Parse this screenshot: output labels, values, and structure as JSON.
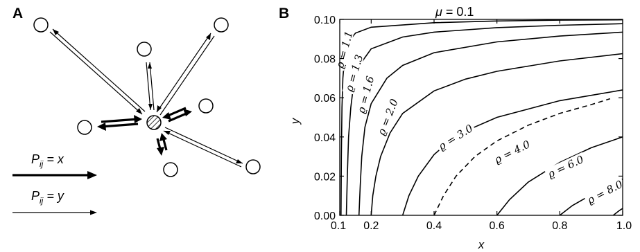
{
  "panel_a": {
    "letter": "A",
    "legend": [
      {
        "label": "P_ij = x",
        "base": "P",
        "sub": "ij",
        "rest": " = x",
        "weight": "thick"
      },
      {
        "label": "P_ij = y",
        "base": "P",
        "sub": "ij",
        "rest": " = y",
        "weight": "thin"
      }
    ],
    "nodes": [
      {
        "id": "node-1"
      },
      {
        "id": "node-2"
      },
      {
        "id": "node-3"
      },
      {
        "id": "node-4"
      },
      {
        "id": "node-5"
      },
      {
        "id": "node-6"
      },
      {
        "id": "node-7"
      },
      {
        "id": "node-8"
      }
    ],
    "center_node": "central-node (hatched)"
  },
  "panel_b": {
    "letter": "B",
    "title_symbol": "μ",
    "title_rest": " = 0.1"
  },
  "chart_data": {
    "type": "line",
    "subtype": "contour",
    "title": "μ = 0.1",
    "xlabel": "x",
    "ylabel": "y",
    "xlim": [
      0.1,
      1.0
    ],
    "ylim": [
      0.0,
      0.1
    ],
    "xticks": [
      "0.1",
      "0.2",
      "0.4",
      "0.6",
      "0.8",
      "1.0"
    ],
    "yticks": [
      "0.00",
      "0.02",
      "0.04",
      "0.06",
      "0.08",
      "0.10"
    ],
    "grid": false,
    "series": [
      {
        "name": "ϱ = 1.1",
        "label_text": "ϱ = 1.1",
        "style": "solid",
        "points": [
          [
            0.104,
            0.0
          ],
          [
            0.105,
            0.03
          ],
          [
            0.107,
            0.055
          ],
          [
            0.11,
            0.07
          ],
          [
            0.115,
            0.08
          ],
          [
            0.125,
            0.088
          ],
          [
            0.15,
            0.093
          ],
          [
            0.2,
            0.096
          ],
          [
            0.4,
            0.0983
          ],
          [
            0.6,
            0.0992
          ],
          [
            0.8,
            0.0996
          ],
          [
            1.0,
            0.0998
          ]
        ]
      },
      {
        "name": "ϱ = 1.3",
        "label_text": "ϱ = 1.3",
        "style": "solid",
        "points": [
          [
            0.121,
            0.0
          ],
          [
            0.124,
            0.02
          ],
          [
            0.128,
            0.04
          ],
          [
            0.135,
            0.055
          ],
          [
            0.145,
            0.068
          ],
          [
            0.16,
            0.076
          ],
          [
            0.2,
            0.085
          ],
          [
            0.3,
            0.091
          ],
          [
            0.4,
            0.0935
          ],
          [
            0.6,
            0.0958
          ],
          [
            0.8,
            0.097
          ],
          [
            1.0,
            0.0978
          ]
        ]
      },
      {
        "name": "ϱ = 1.6",
        "label_text": "ϱ = 1.6",
        "style": "solid",
        "points": [
          [
            0.161,
            0.0
          ],
          [
            0.165,
            0.015
          ],
          [
            0.17,
            0.03
          ],
          [
            0.18,
            0.045
          ],
          [
            0.2,
            0.057
          ],
          [
            0.25,
            0.07
          ],
          [
            0.3,
            0.0765
          ],
          [
            0.4,
            0.083
          ],
          [
            0.6,
            0.0885
          ],
          [
            0.8,
            0.0915
          ],
          [
            1.0,
            0.0935
          ]
        ]
      },
      {
        "name": "ϱ = 2.0",
        "label_text": "ϱ = 2.0",
        "style": "solid",
        "points": [
          [
            0.2,
            0.0
          ],
          [
            0.205,
            0.01
          ],
          [
            0.215,
            0.02
          ],
          [
            0.23,
            0.03
          ],
          [
            0.26,
            0.042
          ],
          [
            0.3,
            0.052
          ],
          [
            0.4,
            0.0635
          ],
          [
            0.5,
            0.0695
          ],
          [
            0.6,
            0.0735
          ],
          [
            0.8,
            0.0788
          ],
          [
            1.0,
            0.0825
          ]
        ]
      },
      {
        "name": "ϱ = 3.0",
        "label_text": "ϱ = 3.0",
        "style": "solid",
        "points": [
          [
            0.3,
            0.0
          ],
          [
            0.32,
            0.01
          ],
          [
            0.35,
            0.02
          ],
          [
            0.4,
            0.031
          ],
          [
            0.45,
            0.038
          ],
          [
            0.5,
            0.043
          ],
          [
            0.6,
            0.05
          ],
          [
            0.8,
            0.0585
          ],
          [
            1.0,
            0.064
          ]
        ]
      },
      {
        "name": "ϱ = 4.0",
        "label_text": "ϱ = 4.0",
        "style": "dashed",
        "points": [
          [
            0.4,
            0.0
          ],
          [
            0.43,
            0.01
          ],
          [
            0.47,
            0.02
          ],
          [
            0.53,
            0.03
          ],
          [
            0.6,
            0.038
          ],
          [
            0.7,
            0.046
          ],
          [
            0.8,
            0.052
          ],
          [
            0.9,
            0.0565
          ],
          [
            0.96,
            0.0595
          ]
        ]
      },
      {
        "name": "ϱ = 6.0",
        "label_text": "ϱ = 6.0",
        "style": "solid",
        "points": [
          [
            0.6,
            0.0
          ],
          [
            0.64,
            0.008
          ],
          [
            0.7,
            0.017
          ],
          [
            0.8,
            0.027
          ],
          [
            0.9,
            0.0345
          ],
          [
            1.0,
            0.04
          ]
        ]
      },
      {
        "name": "ϱ = 8.0",
        "label_text": "ϱ = 8.0",
        "style": "solid",
        "points": [
          [
            0.8,
            0.0
          ],
          [
            0.84,
            0.005
          ],
          [
            0.9,
            0.0105
          ],
          [
            0.96,
            0.0155
          ],
          [
            1.0,
            0.0185
          ]
        ]
      },
      {
        "name": "",
        "label_text": "",
        "style": "solid",
        "points": [
          [
            0.97,
            0.0
          ],
          [
            0.99,
            0.0025
          ],
          [
            1.0,
            0.0035
          ]
        ]
      }
    ]
  }
}
